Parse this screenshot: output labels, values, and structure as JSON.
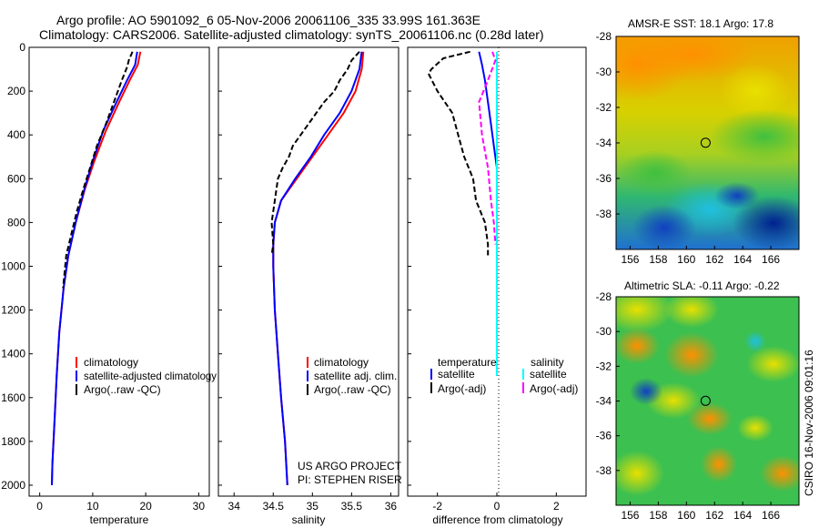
{
  "title_line1": "Argo profile: AO 5901092_6 05-Nov-2006 20061106_335 33.99S 161.363E",
  "title_line2": "Climatology: CARS2006. Satellite-adjusted climatology: synTS_20061106.nc (0.28d later)",
  "footer": {
    "project": "US ARGO PROJECT",
    "pi": "PI: STEPHEN RISER",
    "stamp": "CSIRO 16-Nov-2006 09:01:16"
  },
  "colors": {
    "climatology": "#ff0000",
    "satellite": "#0000ff",
    "argo": "#000000",
    "salinity_satellite": "#00ffff",
    "salinity_argo": "#ff00ff"
  },
  "chart_data": [
    {
      "id": "temperature",
      "type": "line",
      "xlabel": "temperature",
      "ylabel": "",
      "xlim": [
        -2,
        32
      ],
      "ylim": [
        2050,
        0
      ],
      "xticks": [
        0,
        10,
        20,
        30
      ],
      "yticks": [
        0,
        200,
        400,
        600,
        800,
        1000,
        1200,
        1400,
        1600,
        1800,
        2000
      ],
      "legend": [
        "climatology",
        "satellite-adjusted climatology",
        "Argo(..raw -QC)"
      ],
      "series": [
        {
          "name": "climatology",
          "style": "solid",
          "color": "#ff0000",
          "points": [
            [
              19.0,
              20
            ],
            [
              18.5,
              80
            ],
            [
              17.0,
              150
            ],
            [
              15.0,
              250
            ],
            [
              12.5,
              380
            ],
            [
              10.3,
              520
            ],
            [
              8.5,
              650
            ],
            [
              6.8,
              800
            ],
            [
              5.4,
              950
            ],
            [
              4.5,
              1100
            ],
            [
              3.7,
              1300
            ],
            [
              3.2,
              1500
            ],
            [
              2.8,
              1700
            ],
            [
              2.4,
              1900
            ],
            [
              2.3,
              2000
            ]
          ]
        },
        {
          "name": "satellite-adjusted climatology",
          "style": "solid",
          "color": "#0000ff",
          "points": [
            [
              18.4,
              20
            ],
            [
              18.0,
              80
            ],
            [
              16.5,
              150
            ],
            [
              14.5,
              250
            ],
            [
              12.0,
              380
            ],
            [
              10.0,
              520
            ],
            [
              8.4,
              650
            ],
            [
              6.8,
              800
            ],
            [
              5.4,
              950
            ],
            [
              4.5,
              1100
            ],
            [
              3.7,
              1300
            ],
            [
              3.2,
              1500
            ],
            [
              2.8,
              1700
            ],
            [
              2.4,
              1900
            ],
            [
              2.3,
              2000
            ]
          ]
        },
        {
          "name": "Argo(..raw -QC)",
          "style": "dashed",
          "color": "#000000",
          "points": [
            [
              17.5,
              20
            ],
            [
              16.8,
              60
            ],
            [
              16.5,
              90
            ],
            [
              15.5,
              150
            ],
            [
              14.0,
              250
            ],
            [
              12.5,
              350
            ],
            [
              10.8,
              450
            ],
            [
              9.5,
              550
            ],
            [
              8.2,
              650
            ],
            [
              7.0,
              750
            ],
            [
              6.0,
              850
            ],
            [
              5.0,
              950
            ],
            [
              4.4,
              1100
            ]
          ]
        }
      ]
    },
    {
      "id": "salinity",
      "type": "line",
      "xlabel": "salinity",
      "ylabel": "",
      "xlim": [
        33.8,
        36.1
      ],
      "ylim": [
        2050,
        0
      ],
      "xticks": [
        34,
        34.5,
        35,
        35.5,
        36
      ],
      "legend": [
        "climatology",
        "satellite adj. clim.",
        "Argo(..raw -QC)"
      ],
      "series": [
        {
          "name": "climatology",
          "style": "solid",
          "color": "#ff0000",
          "points": [
            [
              35.65,
              20
            ],
            [
              35.63,
              100
            ],
            [
              35.55,
              200
            ],
            [
              35.4,
              300
            ],
            [
              35.2,
              400
            ],
            [
              35.0,
              500
            ],
            [
              34.8,
              600
            ],
            [
              34.6,
              700
            ],
            [
              34.52,
              800
            ],
            [
              34.5,
              900
            ],
            [
              34.5,
              1000
            ],
            [
              34.52,
              1200
            ],
            [
              34.56,
              1400
            ],
            [
              34.6,
              1600
            ],
            [
              34.65,
              1800
            ],
            [
              34.68,
              2000
            ]
          ]
        },
        {
          "name": "satellite adj. clim.",
          "style": "solid",
          "color": "#0000ff",
          "points": [
            [
              35.63,
              20
            ],
            [
              35.6,
              100
            ],
            [
              35.5,
              200
            ],
            [
              35.35,
              300
            ],
            [
              35.15,
              400
            ],
            [
              34.98,
              500
            ],
            [
              34.78,
              600
            ],
            [
              34.6,
              700
            ],
            [
              34.52,
              800
            ],
            [
              34.5,
              900
            ],
            [
              34.5,
              1000
            ],
            [
              34.52,
              1200
            ],
            [
              34.56,
              1400
            ],
            [
              34.6,
              1600
            ],
            [
              34.65,
              1800
            ],
            [
              34.68,
              2000
            ]
          ]
        },
        {
          "name": "Argo(..raw -QC)",
          "style": "dashed",
          "color": "#000000",
          "points": [
            [
              35.6,
              20
            ],
            [
              35.5,
              60
            ],
            [
              35.45,
              100
            ],
            [
              35.35,
              150
            ],
            [
              35.28,
              200
            ],
            [
              35.15,
              250
            ],
            [
              35.05,
              300
            ],
            [
              34.95,
              350
            ],
            [
              34.85,
              400
            ],
            [
              34.75,
              450
            ],
            [
              34.7,
              500
            ],
            [
              34.62,
              550
            ],
            [
              34.56,
              600
            ],
            [
              34.54,
              650
            ],
            [
              34.52,
              700
            ],
            [
              34.48,
              800
            ],
            [
              34.5,
              900
            ],
            [
              34.48,
              950
            ]
          ]
        }
      ]
    },
    {
      "id": "difference",
      "type": "line",
      "xlabel": "difference from climatology",
      "ylabel": "",
      "xlim": [
        -3,
        3
      ],
      "ylim": [
        2050,
        0
      ],
      "xticks": [
        -2,
        0,
        2
      ],
      "legend_headers": [
        "temperature",
        "salinity"
      ],
      "legend": [
        "satellite",
        "Argo(-adj)",
        "satellite",
        "Argo(-adj)"
      ],
      "series": [
        {
          "name": "temperature satellite",
          "style": "solid",
          "color": "#0000ff",
          "points": [
            [
              -0.6,
              20
            ],
            [
              -0.5,
              80
            ],
            [
              -0.4,
              150
            ],
            [
              -0.3,
              250
            ],
            [
              -0.2,
              350
            ],
            [
              -0.1,
              450
            ],
            [
              0,
              550
            ],
            [
              0,
              1500
            ]
          ]
        },
        {
          "name": "temperature Argo(-adj)",
          "style": "dashed",
          "color": "#000000",
          "points": [
            [
              -0.9,
              20
            ],
            [
              -1.8,
              50
            ],
            [
              -2.2,
              100
            ],
            [
              -2.3,
              120
            ],
            [
              -2.0,
              200
            ],
            [
              -1.5,
              300
            ],
            [
              -1.3,
              400
            ],
            [
              -1.1,
              500
            ],
            [
              -0.8,
              600
            ],
            [
              -0.7,
              700
            ],
            [
              -0.4,
              800
            ],
            [
              -0.3,
              900
            ],
            [
              -0.3,
              950
            ]
          ]
        },
        {
          "name": "salinity satellite",
          "style": "solid",
          "color": "#00ffff",
          "points": [
            [
              0,
              20
            ],
            [
              0,
              1500
            ]
          ]
        },
        {
          "name": "salinity Argo(-adj)",
          "style": "dashed",
          "color": "#ff00ff",
          "points": [
            [
              -0.15,
              20
            ],
            [
              -0.05,
              60
            ],
            [
              -0.3,
              150
            ],
            [
              -0.6,
              250
            ],
            [
              -0.5,
              400
            ],
            [
              -0.3,
              550
            ],
            [
              -0.2,
              700
            ],
            [
              -0.1,
              800
            ],
            [
              -0.05,
              900
            ]
          ]
        }
      ]
    },
    {
      "id": "sst_map",
      "type": "heatmap",
      "title": "AMSR-E SST: 18.1 Argo: 17.8",
      "xticks": [
        156,
        158,
        160,
        162,
        164,
        166
      ],
      "yticks": [
        -28,
        -30,
        -32,
        -34,
        -36,
        -38
      ],
      "xlim": [
        155,
        168
      ],
      "ylim": [
        -40,
        -28
      ],
      "marker": {
        "lon": 161.363,
        "lat": -33.99
      }
    },
    {
      "id": "sla_map",
      "type": "heatmap",
      "title": "Altimetric SLA: -0.11 Argo: -0.22",
      "xticks": [
        156,
        158,
        160,
        162,
        164,
        166
      ],
      "yticks": [
        -28,
        -30,
        -32,
        -34,
        -36,
        -38
      ],
      "xlim": [
        155,
        168
      ],
      "ylim": [
        -40,
        -28
      ],
      "marker": {
        "lon": 161.363,
        "lat": -33.99
      }
    }
  ]
}
